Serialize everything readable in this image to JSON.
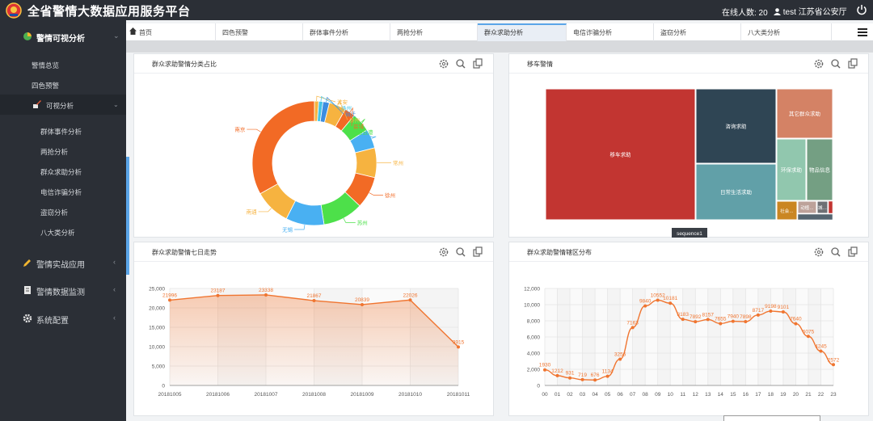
{
  "app": {
    "title": "全省警情大数据应用服务平台",
    "online_label": "在线人数: 20",
    "user_label": "test 江苏省公安厅"
  },
  "sidebar": {
    "main_items": [
      {
        "label": "警情可视分析",
        "icon": "chart-pie-icon",
        "active": true
      },
      {
        "label": "警情实战应用",
        "icon": "pencil-icon"
      },
      {
        "label": "警情数据监测",
        "icon": "document-icon"
      },
      {
        "label": "系统配置",
        "icon": "gear-icon"
      }
    ],
    "sub_items": [
      "警情总览",
      "四色预警"
    ],
    "group": {
      "label": "可视分析",
      "icon": "brush-icon"
    },
    "group_items": [
      "群体事件分析",
      "两抢分析",
      "群众求助分析",
      "电信诈骗分析",
      "盗窃分析",
      "八大类分析"
    ]
  },
  "tabs": [
    {
      "label": "首页",
      "icon": "home-icon"
    },
    {
      "label": "四色预警"
    },
    {
      "label": "群体事件分析"
    },
    {
      "label": "两抢分析"
    },
    {
      "label": "群众求助分析",
      "active": true
    },
    {
      "label": "电信诈骗分析"
    },
    {
      "label": "盗窃分析"
    },
    {
      "label": "八大类分析"
    }
  ],
  "panels": {
    "donut": {
      "title": "群众求助警情分类占比"
    },
    "treemap": {
      "title": "移车警情",
      "tooltip": "sequence1"
    },
    "line7": {
      "title": "群众求助警情七日走势"
    },
    "hourly": {
      "title": "群众求助警情辖区分布"
    }
  },
  "colors": {
    "accent": "#5aa5e8",
    "orange": "#f07530",
    "dark": "#2b2f36"
  },
  "chart_data": [
    {
      "type": "pie",
      "variant": "donut",
      "categories": [
        "南京",
        "淮安",
        "扬州",
        "宿迁",
        "泰州",
        "盐城",
        "连云港",
        "镇江",
        "常州",
        "徐州",
        "苏州",
        "无锡",
        "南通"
      ],
      "values": [
        30,
        1,
        1,
        1.5,
        4,
        2.5,
        4.5,
        4.5,
        7,
        7.5,
        9.5,
        9,
        8.5
      ],
      "colors": [
        "#f26a25",
        "#f6b340",
        "#45c4e6",
        "#3d8de0",
        "#f6b340",
        "#f26a25",
        "#4de04a",
        "#49b0f2",
        "#f6b340",
        "#f26a25",
        "#4de04a",
        "#49b0f2",
        "#f6b340"
      ],
      "legend": "none"
    },
    {
      "type": "treemap",
      "categories": [
        "移车求助",
        "咨询求助",
        "日常生活求助",
        "其它群众求助",
        "环保求助",
        "物品信息",
        "社会…",
        "动植…",
        "城…"
      ],
      "values": [
        160,
        70,
        55,
        45,
        25,
        28,
        6,
        4,
        2
      ],
      "colors": [
        "#c23531",
        "#2f4554",
        "#61a0a8",
        "#d48265",
        "#91c7ae",
        "#749f83",
        "#ca8622",
        "#bda29a",
        "#6e7074"
      ]
    },
    {
      "type": "area",
      "x": [
        "20181005",
        "20181006",
        "20181007",
        "20181008",
        "20181009",
        "20181010",
        "20181011"
      ],
      "values": [
        21996,
        23187,
        23338,
        21867,
        20839,
        22026,
        9915
      ],
      "ylim": [
        0,
        25000
      ],
      "yticks": [
        "0",
        "5,000",
        "10,000",
        "15,000",
        "20,000",
        "25,000"
      ],
      "data_labels": [
        "21996",
        "23187",
        "23338",
        "21867",
        "20839",
        "22026",
        "9915"
      ],
      "grid": true
    },
    {
      "type": "line",
      "x": [
        "00",
        "01",
        "02",
        "03",
        "04",
        "05",
        "06",
        "07",
        "08",
        "09",
        "10",
        "11",
        "12",
        "13",
        "14",
        "15",
        "16",
        "17",
        "18",
        "19",
        "20",
        "21",
        "22",
        "23"
      ],
      "values": [
        1930,
        1212,
        931,
        719,
        676,
        1134,
        3256,
        7163,
        9840,
        10552,
        10181,
        8183,
        7892,
        8157,
        7655,
        7940,
        7898,
        8717,
        9198,
        9101,
        7640,
        6075,
        4245,
        2572
      ],
      "ylim": [
        0,
        12000
      ],
      "yticks": [
        "0",
        "2,000",
        "4,000",
        "6,000",
        "8,000",
        "10,000",
        "12,000"
      ],
      "data_labels": [
        "1930",
        "1212",
        "931",
        "719",
        "676",
        "1134",
        "3256",
        "7163",
        "9840",
        "10552",
        "10181",
        "8183",
        "7892",
        "8157",
        "7655",
        "7940",
        "7898",
        "8717",
        "9198",
        "9101",
        "7640",
        "6075",
        "4245",
        "2572"
      ],
      "grid": true
    }
  ]
}
